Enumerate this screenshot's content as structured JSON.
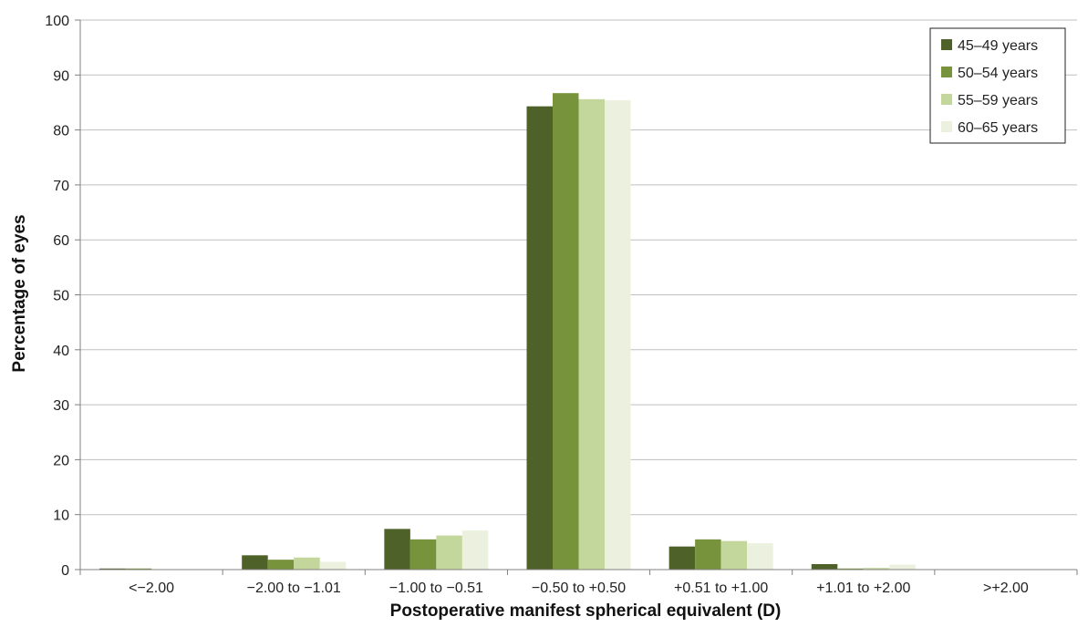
{
  "chart_data": {
    "type": "bar",
    "title": "",
    "xlabel": "Postoperative manifest spherical equivalent (D)",
    "ylabel": "Percentage of eyes",
    "ylim": [
      0,
      100
    ],
    "yticks": [
      "0",
      "10",
      "20",
      "30",
      "40",
      "50",
      "60",
      "70",
      "80",
      "90",
      "100"
    ],
    "grid": true,
    "legend_position": "top-right",
    "categories": [
      "<−2.00",
      "−2.00 to −1.01",
      "−1.00 to −0.51",
      "−0.50 to +0.50",
      "+0.51 to +1.00",
      "+1.01 to +2.00",
      ">+2.00"
    ],
    "series": [
      {
        "name": "45–49 years",
        "color": "#4e6128",
        "values": [
          0.2,
          2.6,
          7.4,
          84.3,
          4.2,
          1.0,
          0
        ]
      },
      {
        "name": "50–54 years",
        "color": "#77933c",
        "values": [
          0.2,
          1.8,
          5.5,
          86.7,
          5.5,
          0.2,
          0
        ]
      },
      {
        "name": "55–59 years",
        "color": "#c3d69b",
        "values": [
          0,
          2.2,
          6.2,
          85.6,
          5.2,
          0.3,
          0
        ]
      },
      {
        "name": "60–65 years",
        "color": "#ebf1de",
        "values": [
          0,
          1.4,
          7.1,
          85.4,
          4.8,
          0.9,
          0
        ]
      }
    ]
  }
}
